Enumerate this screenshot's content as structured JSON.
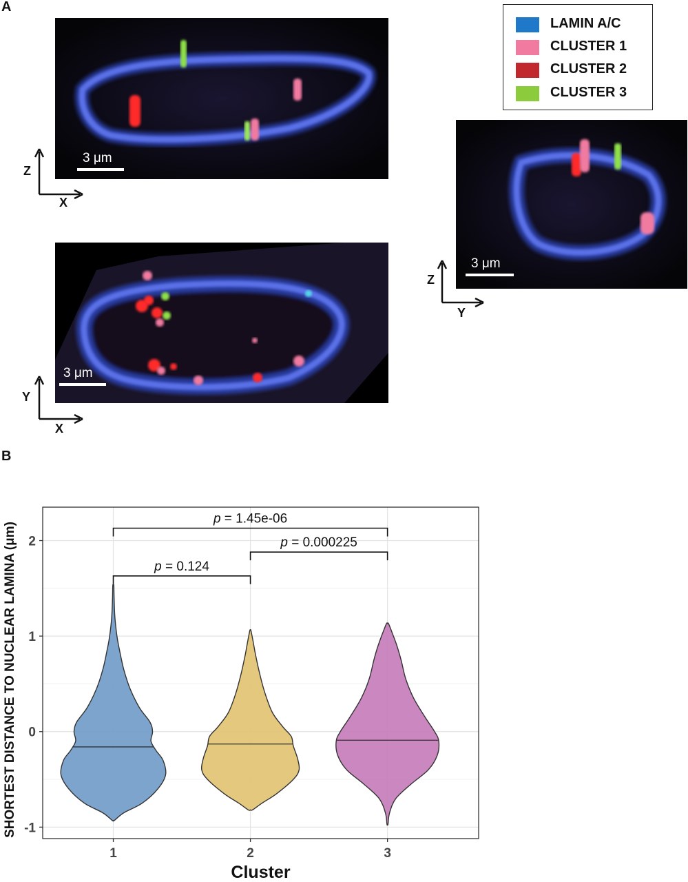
{
  "panels": {
    "a": "A",
    "b": "B"
  },
  "legend": {
    "items": [
      {
        "label": "LAMIN A/C",
        "color": "#1f78c8"
      },
      {
        "label": "CLUSTER 1",
        "color": "#f07aa0"
      },
      {
        "label": "CLUSTER 2",
        "color": "#c0282d"
      },
      {
        "label": "CLUSTER 3",
        "color": "#8ccc3c"
      }
    ]
  },
  "micrographs": {
    "xz": {
      "scale": "3 μm",
      "axis_v": "Z",
      "axis_h": "X"
    },
    "yz": {
      "scale": "3 μm",
      "axis_v": "Z",
      "axis_h": "Y"
    },
    "xy": {
      "scale": "3 μm",
      "axis_v": "Y",
      "axis_h": "X"
    }
  },
  "colors": {
    "lamina": "#4a63d8",
    "cluster_1": "#f07aa0",
    "cluster_2": "#ff2a2a",
    "cluster_3": "#7ed63c"
  },
  "chart_data": {
    "type": "violin",
    "xlabel": "Cluster",
    "ylabel": "SHORTEST DISTANCE TO NUCLEAR LAMINA (μm)",
    "categories": [
      "1",
      "2",
      "3"
    ],
    "ylim": [
      -1.12,
      2.35
    ],
    "yticks": [
      -1,
      0,
      1,
      2
    ],
    "grid": true,
    "series": [
      {
        "category": "1",
        "color": "#6f9ac7",
        "median": -0.16,
        "min": -0.93,
        "max": 1.53,
        "density_profile": [
          [
            -0.93,
            0.02
          ],
          [
            -0.85,
            0.2
          ],
          [
            -0.75,
            0.55
          ],
          [
            -0.6,
            0.85
          ],
          [
            -0.45,
            1.0
          ],
          [
            -0.3,
            0.95
          ],
          [
            -0.2,
            0.82
          ],
          [
            -0.1,
            0.72
          ],
          [
            0.0,
            0.75
          ],
          [
            0.1,
            0.7
          ],
          [
            0.25,
            0.5
          ],
          [
            0.45,
            0.32
          ],
          [
            0.65,
            0.2
          ],
          [
            0.85,
            0.12
          ],
          [
            1.0,
            0.07
          ],
          [
            1.2,
            0.03
          ],
          [
            1.4,
            0.015
          ],
          [
            1.53,
            0.01
          ]
        ]
      },
      {
        "category": "2",
        "color": "#e1c270",
        "median": -0.13,
        "min": -0.82,
        "max": 1.06,
        "density_profile": [
          [
            -0.82,
            0.04
          ],
          [
            -0.75,
            0.22
          ],
          [
            -0.65,
            0.5
          ],
          [
            -0.5,
            0.82
          ],
          [
            -0.4,
            0.93
          ],
          [
            -0.28,
            0.9
          ],
          [
            -0.15,
            0.82
          ],
          [
            -0.05,
            0.78
          ],
          [
            0.05,
            0.62
          ],
          [
            0.2,
            0.42
          ],
          [
            0.4,
            0.28
          ],
          [
            0.6,
            0.18
          ],
          [
            0.8,
            0.1
          ],
          [
            0.95,
            0.05
          ],
          [
            1.06,
            0.01
          ]
        ]
      },
      {
        "category": "3",
        "color": "#c57ab8",
        "median": -0.09,
        "min": -0.97,
        "max": 1.13,
        "density_profile": [
          [
            -0.97,
            0.01
          ],
          [
            -0.85,
            0.04
          ],
          [
            -0.7,
            0.16
          ],
          [
            -0.55,
            0.45
          ],
          [
            -0.4,
            0.78
          ],
          [
            -0.25,
            0.95
          ],
          [
            -0.1,
            0.98
          ],
          [
            0.0,
            0.9
          ],
          [
            0.15,
            0.72
          ],
          [
            0.35,
            0.5
          ],
          [
            0.55,
            0.35
          ],
          [
            0.75,
            0.26
          ],
          [
            0.9,
            0.18
          ],
          [
            1.02,
            0.1
          ],
          [
            1.13,
            0.02
          ]
        ]
      }
    ],
    "comparisons": [
      {
        "groups": [
          "1",
          "2"
        ],
        "p": "0.124",
        "level": 1
      },
      {
        "groups": [
          "2",
          "3"
        ],
        "p": "0.000225",
        "level": 2
      },
      {
        "groups": [
          "1",
          "3"
        ],
        "p": "1.45e-06",
        "level": 3
      }
    ]
  }
}
